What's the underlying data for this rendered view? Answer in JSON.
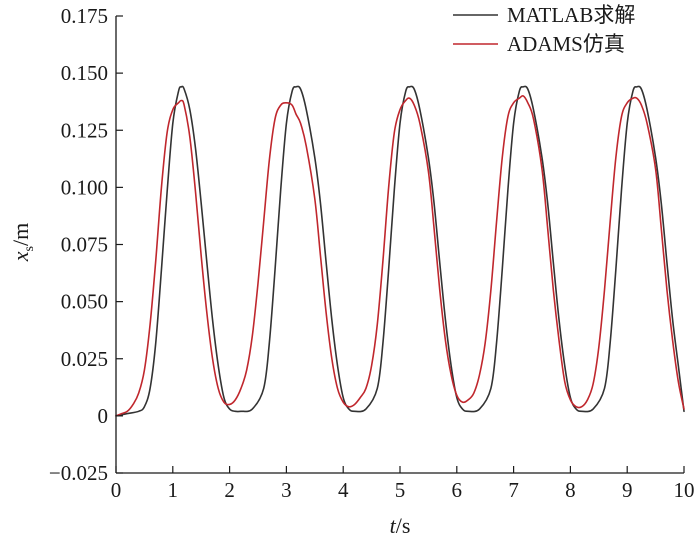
{
  "chart_data": {
    "type": "line",
    "title": "",
    "xlabel": {
      "var": "t",
      "unit": "/s"
    },
    "ylabel": {
      "var": "x",
      "sub": "s",
      "unit": "/m"
    },
    "xlim": [
      0,
      10
    ],
    "ylim": [
      -0.025,
      0.175
    ],
    "xticks": [
      0,
      1,
      2,
      3,
      4,
      5,
      6,
      7,
      8,
      9,
      10
    ],
    "xtick_labels": [
      "0",
      "1",
      "2",
      "3",
      "4",
      "5",
      "6",
      "7",
      "8",
      "9",
      "10"
    ],
    "yticks": [
      -0.025,
      0,
      0.025,
      0.05,
      0.075,
      0.1,
      0.125,
      0.15,
      0.175
    ],
    "ytick_labels": [
      "−0.025",
      "0",
      "0.025",
      "0.050",
      "0.075",
      "0.100",
      "0.125",
      "0.150",
      "0.175"
    ],
    "grid": false,
    "legend_position": "top-right",
    "series": [
      {
        "name": "MATLAB求解",
        "color": "#333333",
        "x": [
          0,
          0.2,
          0.4,
          0.5,
          0.6,
          0.7,
          0.8,
          0.9,
          1.0,
          1.1,
          1.15,
          1.2,
          1.3,
          1.4,
          1.5,
          1.6,
          1.7,
          1.8,
          1.9,
          2.0,
          2.1,
          2.2,
          2.4,
          2.6,
          2.7,
          2.8,
          2.9,
          3.0,
          3.1,
          3.17,
          3.25,
          3.35,
          3.5,
          3.6,
          3.7,
          3.8,
          3.9,
          4.0,
          4.1,
          4.2,
          4.4,
          4.6,
          4.7,
          4.8,
          4.9,
          5.0,
          5.1,
          5.17,
          5.25,
          5.35,
          5.5,
          5.6,
          5.7,
          5.8,
          5.9,
          6.0,
          6.1,
          6.2,
          6.4,
          6.6,
          6.7,
          6.8,
          6.9,
          7.0,
          7.1,
          7.17,
          7.25,
          7.35,
          7.5,
          7.6,
          7.7,
          7.8,
          7.9,
          8.0,
          8.1,
          8.2,
          8.4,
          8.6,
          8.7,
          8.8,
          8.9,
          9.0,
          9.1,
          9.17,
          9.25,
          9.35,
          9.5,
          9.6,
          9.7,
          9.8,
          9.9,
          10.0
        ],
        "y": [
          0.0,
          0.001,
          0.002,
          0.004,
          0.012,
          0.032,
          0.064,
          0.098,
          0.128,
          0.142,
          0.144,
          0.143,
          0.134,
          0.117,
          0.093,
          0.067,
          0.042,
          0.022,
          0.008,
          0.003,
          0.002,
          0.002,
          0.003,
          0.012,
          0.032,
          0.064,
          0.099,
          0.128,
          0.142,
          0.144,
          0.143,
          0.134,
          0.113,
          0.093,
          0.067,
          0.042,
          0.022,
          0.008,
          0.003,
          0.002,
          0.003,
          0.012,
          0.032,
          0.064,
          0.099,
          0.128,
          0.142,
          0.144,
          0.143,
          0.134,
          0.113,
          0.093,
          0.067,
          0.042,
          0.022,
          0.008,
          0.003,
          0.002,
          0.003,
          0.012,
          0.032,
          0.064,
          0.099,
          0.128,
          0.142,
          0.144,
          0.143,
          0.134,
          0.113,
          0.093,
          0.067,
          0.042,
          0.022,
          0.008,
          0.003,
          0.002,
          0.003,
          0.012,
          0.032,
          0.064,
          0.099,
          0.128,
          0.142,
          0.144,
          0.143,
          0.134,
          0.113,
          0.093,
          0.067,
          0.042,
          0.022,
          0.002
        ]
      },
      {
        "name": "ADAMS仿真",
        "color": "#c0272d",
        "x": [
          0,
          0.1,
          0.2,
          0.3,
          0.4,
          0.5,
          0.6,
          0.7,
          0.8,
          0.9,
          1.0,
          1.1,
          1.15,
          1.2,
          1.3,
          1.4,
          1.5,
          1.6,
          1.7,
          1.8,
          1.9,
          2.0,
          2.1,
          2.2,
          2.3,
          2.4,
          2.5,
          2.6,
          2.7,
          2.8,
          2.9,
          3.0,
          3.1,
          3.17,
          3.25,
          3.35,
          3.5,
          3.6,
          3.7,
          3.8,
          3.9,
          4.0,
          4.1,
          4.2,
          4.3,
          4.4,
          4.5,
          4.6,
          4.7,
          4.8,
          4.9,
          5.0,
          5.1,
          5.17,
          5.25,
          5.35,
          5.5,
          5.6,
          5.7,
          5.8,
          5.9,
          6.0,
          6.1,
          6.2,
          6.3,
          6.4,
          6.5,
          6.6,
          6.7,
          6.8,
          6.9,
          7.0,
          7.1,
          7.17,
          7.25,
          7.35,
          7.5,
          7.6,
          7.7,
          7.8,
          7.9,
          8.0,
          8.1,
          8.2,
          8.3,
          8.4,
          8.5,
          8.6,
          8.7,
          8.8,
          8.9,
          9.0,
          9.1,
          9.17,
          9.25,
          9.35,
          9.5,
          9.6,
          9.7,
          9.8,
          9.9,
          10.0
        ],
        "y": [
          0.0,
          0.001,
          0.002,
          0.005,
          0.01,
          0.02,
          0.04,
          0.068,
          0.1,
          0.124,
          0.134,
          0.137,
          0.138,
          0.136,
          0.122,
          0.098,
          0.07,
          0.045,
          0.025,
          0.012,
          0.006,
          0.005,
          0.007,
          0.012,
          0.02,
          0.035,
          0.058,
          0.085,
          0.112,
          0.13,
          0.136,
          0.137,
          0.136,
          0.132,
          0.128,
          0.118,
          0.095,
          0.07,
          0.045,
          0.025,
          0.012,
          0.006,
          0.004,
          0.005,
          0.008,
          0.012,
          0.022,
          0.04,
          0.068,
          0.1,
          0.124,
          0.134,
          0.138,
          0.139,
          0.136,
          0.128,
          0.107,
          0.082,
          0.055,
          0.033,
          0.018,
          0.009,
          0.006,
          0.007,
          0.01,
          0.018,
          0.032,
          0.055,
          0.085,
          0.113,
          0.131,
          0.137,
          0.139,
          0.14,
          0.137,
          0.13,
          0.108,
          0.082,
          0.055,
          0.033,
          0.015,
          0.007,
          0.004,
          0.004,
          0.007,
          0.014,
          0.03,
          0.055,
          0.085,
          0.113,
          0.131,
          0.137,
          0.139,
          0.139,
          0.136,
          0.128,
          0.108,
          0.082,
          0.055,
          0.033,
          0.015,
          0.003
        ]
      }
    ]
  }
}
